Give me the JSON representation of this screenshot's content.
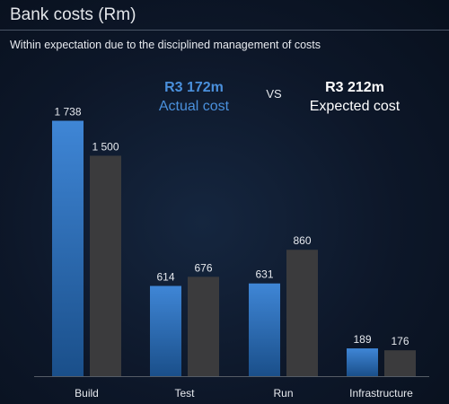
{
  "title": "Bank costs (Rm)",
  "subtitle": "Within expectation due to the disciplined management of costs",
  "kpis": {
    "actual_amount": "R3 172m",
    "actual_caption": "Actual cost",
    "vs": "VS",
    "expected_amount": "R3 212m",
    "expected_caption": "Expected cost"
  },
  "colors": {
    "actual_top": "#3f86d6",
    "actual_bottom": "#1a4f8a",
    "expected": "#3b3b3d",
    "axis": "#555c66"
  },
  "chart_data": {
    "type": "bar",
    "title": "Bank costs (Rm)",
    "subtitle": "Within expectation due to the disciplined management of costs",
    "categories": [
      "Build",
      "Test",
      "Run",
      "Infrastructure"
    ],
    "series": [
      {
        "name": "Actual cost",
        "values": [
          1738,
          614,
          631,
          189
        ],
        "labels": [
          "1 738",
          "614",
          "631",
          "189"
        ]
      },
      {
        "name": "Expected cost",
        "values": [
          1500,
          676,
          860,
          176
        ],
        "labels": [
          "1 500",
          "676",
          "860",
          "176"
        ]
      }
    ],
    "ylim": [
      0,
      1900
    ],
    "grid": false,
    "xlabel": "",
    "ylabel": ""
  }
}
